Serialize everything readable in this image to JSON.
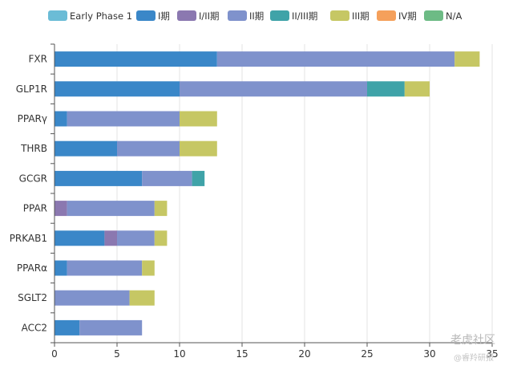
{
  "chart_data": {
    "type": "bar",
    "orientation": "horizontal",
    "stacked": true,
    "title": "",
    "xlabel": "",
    "ylabel": "",
    "xlim": [
      0,
      35
    ],
    "xticks": [
      0,
      5,
      10,
      15,
      20,
      25,
      30,
      35
    ],
    "grid": true,
    "legend_position": "top",
    "categories": [
      "FXR",
      "GLP1R",
      "PPARγ",
      "THRB",
      "GCGR",
      "PPAR",
      "PRKAB1",
      "PPARα",
      "SGLT2",
      "ACC2"
    ],
    "series": [
      {
        "name": "Early Phase 1",
        "color": "#6bbcd6",
        "values": [
          0,
          0,
          0,
          0,
          0,
          0,
          0,
          0,
          0,
          0
        ]
      },
      {
        "name": "I期",
        "color": "#3a87c8",
        "values": [
          13,
          10,
          1,
          5,
          7,
          0,
          4,
          1,
          0,
          2
        ]
      },
      {
        "name": "I/II期",
        "color": "#8b78b0",
        "values": [
          0,
          0,
          0,
          0,
          0,
          1,
          1,
          0,
          0,
          0
        ]
      },
      {
        "name": "II期",
        "color": "#7f92cc",
        "values": [
          19,
          15,
          9,
          5,
          4,
          7,
          3,
          6,
          6,
          5
        ]
      },
      {
        "name": "II/III期",
        "color": "#3fa3a8",
        "values": [
          0,
          3,
          0,
          0,
          1,
          0,
          0,
          0,
          0,
          0
        ]
      },
      {
        "name": "III期",
        "color": "#c6c764",
        "values": [
          2,
          2,
          3,
          3,
          0,
          1,
          1,
          1,
          2,
          0
        ]
      },
      {
        "name": "IV期",
        "color": "#f5a05b",
        "values": [
          0,
          0,
          0,
          0,
          0,
          0,
          0,
          0,
          0,
          0
        ]
      },
      {
        "name": "N/A",
        "color": "#6dbb85",
        "values": [
          0,
          0,
          0,
          0,
          0,
          0,
          0,
          0,
          0,
          0
        ]
      }
    ]
  },
  "watermark": {
    "text": "老虎社区",
    "sub": "@睿羚研报"
  }
}
